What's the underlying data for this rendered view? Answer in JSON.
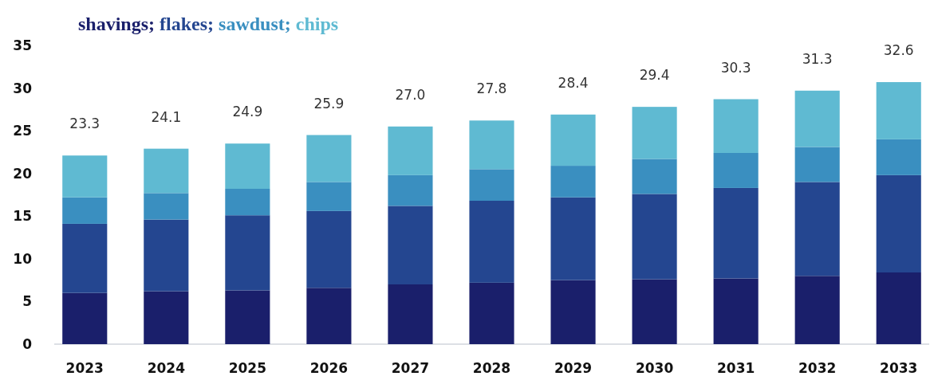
{
  "chart_data": {
    "type": "bar",
    "stacked": true,
    "legend": "top left",
    "categories": [
      "2023",
      "2024",
      "2025",
      "2026",
      "2027",
      "2028",
      "2029",
      "2030",
      "2031",
      "2032",
      "2033"
    ],
    "series": [
      {
        "name": "shavings;",
        "color": "#1a1f6b",
        "values": [
          6.0,
          6.2,
          6.3,
          6.6,
          7.0,
          7.2,
          7.5,
          7.6,
          7.7,
          8.0,
          8.4
        ]
      },
      {
        "name": "flakes;",
        "color": "#244690",
        "values": [
          8.1,
          8.4,
          8.8,
          9.0,
          9.2,
          9.6,
          9.7,
          10.0,
          10.6,
          11.0,
          11.4
        ]
      },
      {
        "name": "sawdust;",
        "color": "#3a8fc0",
        "values": [
          3.1,
          3.1,
          3.1,
          3.4,
          3.6,
          3.7,
          3.7,
          4.1,
          4.1,
          4.1,
          4.2
        ]
      },
      {
        "name": "chips",
        "color": "#5fbad2",
        "values": [
          4.9,
          5.2,
          5.3,
          5.5,
          5.7,
          5.7,
          6.0,
          6.1,
          6.3,
          6.6,
          6.7
        ]
      }
    ],
    "annotations": [
      {
        "text": "23.3",
        "x": "2023",
        "y": 22.1
      },
      {
        "text": "24.1",
        "x": "2024",
        "y": 22.9
      },
      {
        "text": "24.9",
        "x": "2025",
        "y": 23.5
      },
      {
        "text": "25.9",
        "x": "2026",
        "y": 24.5
      },
      {
        "text": "27.0",
        "x": "2027",
        "y": 25.5
      },
      {
        "text": "27.8",
        "x": "2028",
        "y": 26.2
      },
      {
        "text": "28.4",
        "x": "2029",
        "y": 26.9
      },
      {
        "text": "29.4",
        "x": "2030",
        "y": 27.8
      },
      {
        "text": "30.3",
        "x": "2031",
        "y": 28.7
      },
      {
        "text": "31.3",
        "x": "2032",
        "y": 29.7
      },
      {
        "text": "32.6",
        "x": "2033",
        "y": 30.7
      }
    ],
    "ylim": [
      0,
      35
    ],
    "yticks": [
      0,
      5,
      10,
      15,
      20,
      25,
      30,
      35
    ],
    "grid": false
  }
}
